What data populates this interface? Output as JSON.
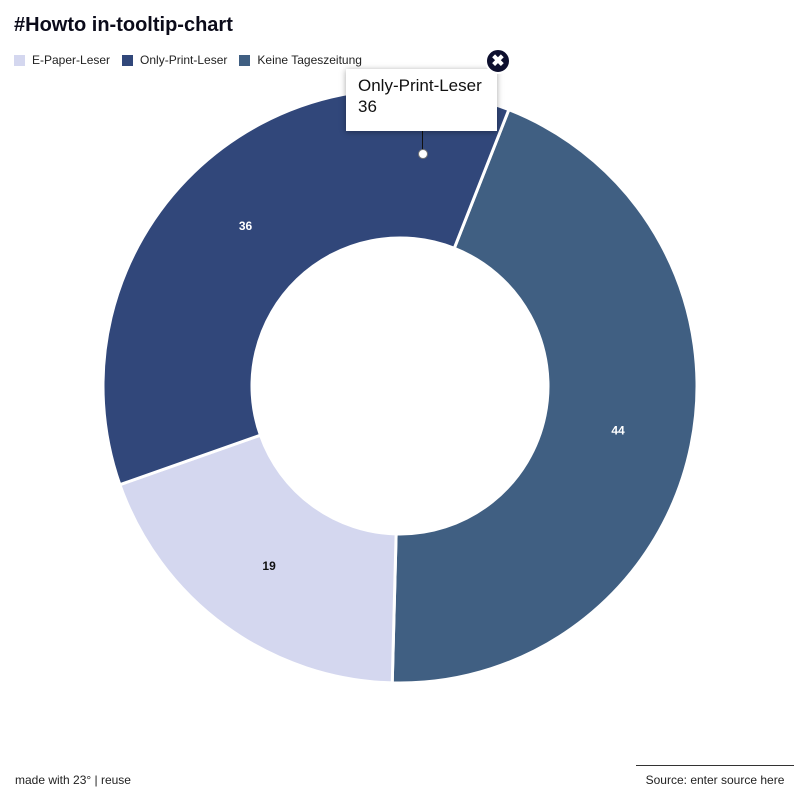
{
  "header": {
    "title": "#Howto in-tooltip-chart"
  },
  "colors": {
    "e_paper": "#d4d7ef",
    "only_print": "#31477a",
    "keine": "#405f82",
    "close_bg": "#0d0f2e"
  },
  "legend": {
    "items": [
      {
        "label": "E-Paper-Leser",
        "color": "#d4d7ef"
      },
      {
        "label": "Only-Print-Leser",
        "color": "#31477a"
      },
      {
        "label": "Keine Tageszeitung",
        "color": "#405f82"
      }
    ]
  },
  "tooltip": {
    "name": "Only-Print-Leser",
    "value": "36",
    "close_icon": "close-icon"
  },
  "chart_data": {
    "type": "pie",
    "donut": true,
    "title": "#Howto in-tooltip-chart",
    "categories": [
      "Keine Tageszeitung",
      "E-Paper-Leser",
      "Only-Print-Leser"
    ],
    "values": [
      44,
      19,
      36
    ],
    "colors": [
      "#405f82",
      "#d4d7ef",
      "#31477a"
    ],
    "data_labels": [
      "44",
      "19",
      "36"
    ],
    "legend": "top-left"
  },
  "footer": {
    "credit": "made with 23° | reuse",
    "source": "Source: enter source here"
  }
}
